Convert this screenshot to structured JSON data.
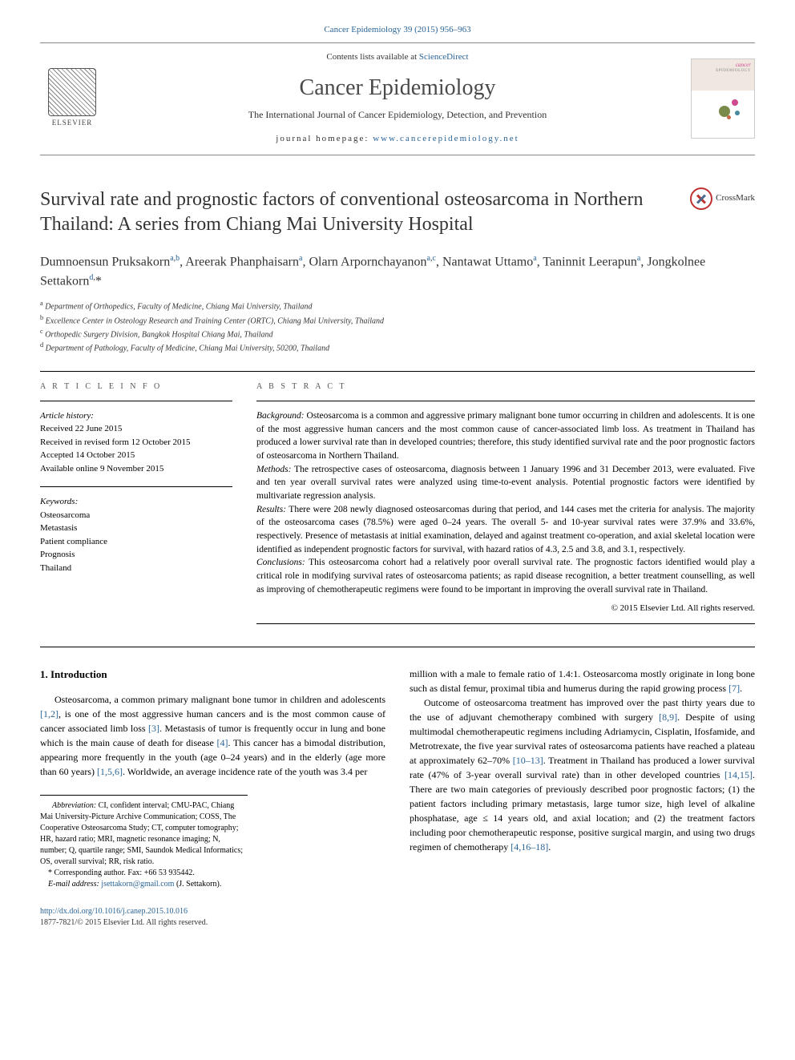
{
  "colors": {
    "link": "#2a6496",
    "text": "#000000",
    "heading_gray": "#555555",
    "border": "#888888",
    "crossmark_red": "#c03030",
    "crossmark_blue": "#4a6a8a",
    "background": "#ffffff"
  },
  "typography": {
    "body_font": "Times New Roman, Georgia, serif",
    "body_size_pt": 12,
    "title_size_pt": 24,
    "journal_title_size_pt": 28,
    "abstract_size_pt": 11.5,
    "affiliation_size_pt": 10,
    "footnote_size_pt": 10
  },
  "header": {
    "top_link_text": "Cancer Epidemiology 39 (2015) 956–963",
    "contents_prefix": "Contents lists available at ",
    "contents_link": "ScienceDirect",
    "journal_title": "Cancer Epidemiology",
    "journal_subtitle": "The International Journal of Cancer Epidemiology, Detection, and Prevention",
    "homepage_prefix": "journal homepage: ",
    "homepage_link": "www.cancerepidemiology.net",
    "elsevier_label": "ELSEVIER",
    "cover_label_small": "cancer",
    "cover_label_sub": "EPIDEMIOLOGY",
    "cover_dot_colors": [
      "#d04890",
      "#7a8a4a",
      "#4a8aa0",
      "#c86a4a"
    ]
  },
  "crossmark": {
    "label": "CrossMark"
  },
  "article": {
    "title": "Survival rate and prognostic factors of conventional osteosarcoma in Northern Thailand: A series from Chiang Mai University Hospital",
    "authors_html": "Dumnoensun Pruksakorn<sup><a>a</a>,<a>b</a></sup>, Areerak Phanphaisarn<sup><a>a</a></sup>, Olarn Arpornchayanon<sup><a>a</a>,<a>c</a></sup>, Nantawat Uttamo<sup><a>a</a></sup>, Taninnit Leerapun<sup><a>a</a></sup>, Jongkolnee Settakorn<sup><a>d</a>,</sup>*",
    "affiliations": [
      {
        "key": "a",
        "text": "Department of Orthopedics, Faculty of Medicine, Chiang Mai University, Thailand"
      },
      {
        "key": "b",
        "text": "Excellence Center in Osteology Research and Training Center (ORTC), Chiang Mai University, Thailand"
      },
      {
        "key": "c",
        "text": "Orthopedic Surgery Division, Bangkok Hospital Chiang Mai, Thailand"
      },
      {
        "key": "d",
        "text": "Department of Pathology, Faculty of Medicine, Chiang Mai University, 50200, Thailand"
      }
    ]
  },
  "info": {
    "heading": "A R T I C L E   I N F O",
    "history_label": "Article history:",
    "history": [
      "Received 22 June 2015",
      "Received in revised form 12 October 2015",
      "Accepted 14 October 2015",
      "Available online 9 November 2015"
    ],
    "keywords_label": "Keywords:",
    "keywords": [
      "Osteosarcoma",
      "Metastasis",
      "Patient compliance",
      "Prognosis",
      "Thailand"
    ]
  },
  "abstract": {
    "heading": "A B S T R A C T",
    "background_label": "Background:",
    "background": " Osteosarcoma is a common and aggressive primary malignant bone tumor occurring in children and adolescents. It is one of the most aggressive human cancers and the most common cause of cancer-associated limb loss. As treatment in Thailand has produced a lower survival rate than in developed countries; therefore, this study identified survival rate and the poor prognostic factors of osteosarcoma in Northern Thailand.",
    "methods_label": "Methods:",
    "methods": " The retrospective cases of osteosarcoma, diagnosis between 1 January 1996 and 31 December 2013, were evaluated. Five and ten year overall survival rates were analyzed using time-to-event analysis. Potential prognostic factors were identified by multivariate regression analysis.",
    "results_label": "Results:",
    "results": " There were 208 newly diagnosed osteosarcomas during that period, and 144 cases met the criteria for analysis. The majority of the osteosarcoma cases (78.5%) were aged 0–24 years. The overall 5- and 10-year survival rates were 37.9% and 33.6%, respectively. Presence of metastasis at initial examination, delayed and against treatment co-operation, and axial skeletal location were identified as independent prognostic factors for survival, with hazard ratios of 4.3, 2.5 and 3.8, and 3.1, respectively.",
    "conclusions_label": "Conclusions:",
    "conclusions": " This osteosarcoma cohort had a relatively poor overall survival rate. The prognostic factors identified would play a critical role in modifying survival rates of osteosarcoma patients; as rapid disease recognition, a better treatment counselling, as well as improving of chemotherapeutic regimens were found to be important in improving the overall survival rate in Thailand.",
    "copyright": "© 2015 Elsevier Ltd. All rights reserved."
  },
  "body": {
    "intro_heading": "1. Introduction",
    "para1_pre": "Osteosarcoma, a common primary malignant bone tumor in children and adolescents ",
    "ref12": "[1,2]",
    "para1_mid1": ", is one of the most aggressive human cancers and is the most common cause of cancer associated limb loss ",
    "ref3": "[3]",
    "para1_mid2": ". Metastasis of tumor is frequently occur in lung and bone which is the main cause of death for disease ",
    "ref4": "[4]",
    "para1_mid3": ". This cancer has a bimodal distribution, appearing more frequently in the youth (age 0–24 years) and in the elderly (age more than 60 years) ",
    "ref156": "[1,5,6]",
    "para1_end": ". Worldwide, an average incidence rate of the youth was 3.4 per",
    "para2_pre": "million with a male to female ratio of 1.4:1. Osteosarcoma mostly originate in long bone such as distal femur, proximal tibia and humerus during the rapid growing process ",
    "ref7": "[7]",
    "para2_end": ".",
    "para3_pre": "Outcome of osteosarcoma treatment has improved over the past thirty years due to the use of adjuvant chemotherapy combined with surgery ",
    "ref89": "[8,9]",
    "para3_mid1": ". Despite of using multimodal chemotherapeutic regimens including Adriamycin, Cisplatin, Ifosfamide, and Metrotrexate, the five year survival rates of osteosarcoma patients have reached a plateau at approximately 62–70% ",
    "ref1013": "[10–13]",
    "para3_mid2": ". Treatment in Thailand has produced a lower survival rate (47% of 3-year overall survival rate) than in other developed countries ",
    "ref1415": "[14,15]",
    "para3_mid3": ". There are two main categories of previously described poor prognostic factors; (1) the patient factors including primary metastasis, large tumor size, high level of alkaline phosphatase, age ≤ 14 years old, and axial location; and (2) the treatment factors including poor chemotherapeutic response, positive surgical margin, and using two drugs regimen of chemotherapy ",
    "ref41618": "[4,16–18]",
    "para3_end": "."
  },
  "footnotes": {
    "abbrev_label": "Abbreviation:",
    "abbrev": " CI, confident interval; CMU-PAC, Chiang Mai University-Picture Archive Communication; COSS, The Cooperative Osteosarcoma Study; CT, computer tomography; HR, hazard ratio; MRI, magnetic resonance imaging; N, number; Q, quartile range; SMI, Saundok Medical Informatics; OS, overall survival; RR, risk ratio.",
    "corresponding": "* Corresponding author. Fax: +66 53 935442.",
    "email_label": "E-mail address: ",
    "email": "jsettakorn@gmail.com",
    "email_suffix": " (J. Settakorn)."
  },
  "doi": {
    "link": "http://dx.doi.org/10.1016/j.canep.2015.10.016",
    "issn_line": "1877-7821/© 2015 Elsevier Ltd. All rights reserved."
  }
}
